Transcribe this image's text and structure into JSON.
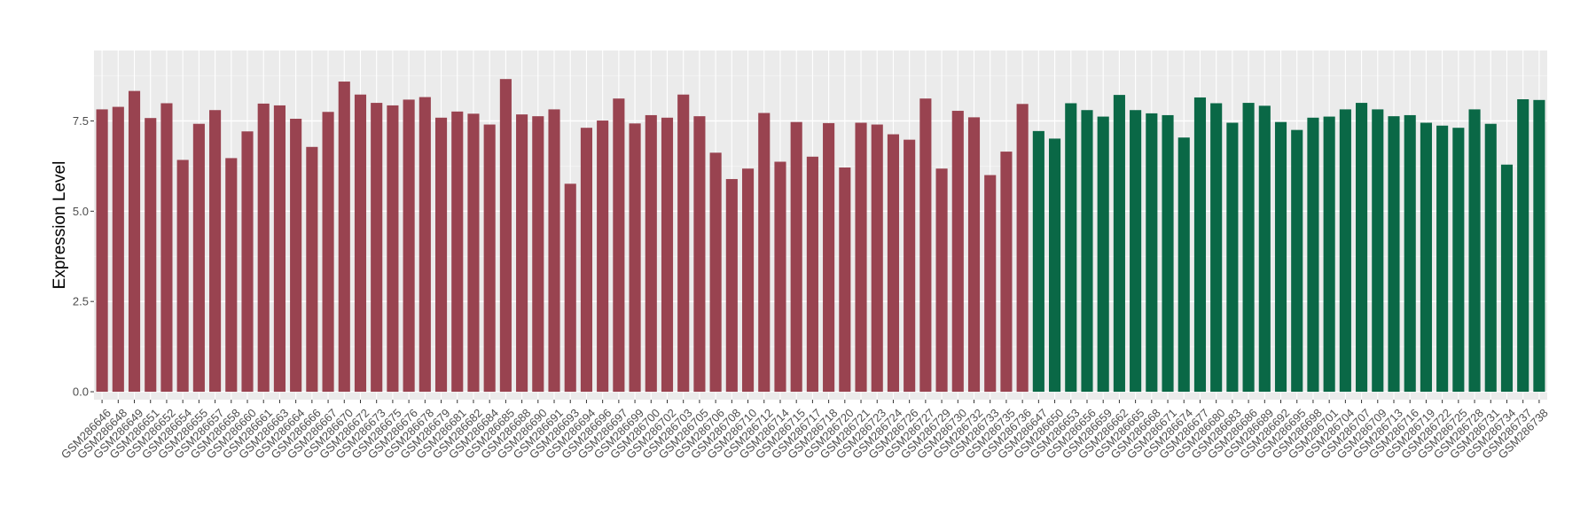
{
  "chart_data": {
    "type": "bar",
    "title": "",
    "xlabel": "",
    "ylabel": "Expression Level",
    "ylim": [
      -0.22,
      9.45
    ],
    "yticks": [
      0.0,
      2.5,
      5.0,
      7.5
    ],
    "ytick_labels": [
      "0.0",
      "2.5",
      "5.0",
      "7.5"
    ],
    "grid": true,
    "legend": "none",
    "colors": {
      "group_a": "#994350",
      "group_b": "#0a6846",
      "panel": "#ebebeb",
      "grid_major": "#ffffff",
      "grid_minor": "#f5f5f5"
    },
    "categories": [
      "GSM286646",
      "GSM286648",
      "GSM286649",
      "GSM286651",
      "GSM286652",
      "GSM286654",
      "GSM286655",
      "GSM286657",
      "GSM286658",
      "GSM286660",
      "GSM286661",
      "GSM286663",
      "GSM286664",
      "GSM286666",
      "GSM286667",
      "GSM286670",
      "GSM286672",
      "GSM286673",
      "GSM286675",
      "GSM286676",
      "GSM286678",
      "GSM286679",
      "GSM286681",
      "GSM286682",
      "GSM286684",
      "GSM286685",
      "GSM286688",
      "GSM286690",
      "GSM286691",
      "GSM286693",
      "GSM286694",
      "GSM286696",
      "GSM286697",
      "GSM286699",
      "GSM286700",
      "GSM286702",
      "GSM286703",
      "GSM286705",
      "GSM286706",
      "GSM286708",
      "GSM286710",
      "GSM286712",
      "GSM286714",
      "GSM286715",
      "GSM286717",
      "GSM286718",
      "GSM286720",
      "GSM286721",
      "GSM286723",
      "GSM286724",
      "GSM286726",
      "GSM286727",
      "GSM286729",
      "GSM286730",
      "GSM286732",
      "GSM286733",
      "GSM286735",
      "GSM286736",
      "GSM286647",
      "GSM286650",
      "GSM286653",
      "GSM286656",
      "GSM286659",
      "GSM286662",
      "GSM286665",
      "GSM286668",
      "GSM286671",
      "GSM286674",
      "GSM286677",
      "GSM286680",
      "GSM286683",
      "GSM286686",
      "GSM286689",
      "GSM286692",
      "GSM286695",
      "GSM286698",
      "GSM286701",
      "GSM286704",
      "GSM286707",
      "GSM286709",
      "GSM286713",
      "GSM286716",
      "GSM286719",
      "GSM286722",
      "GSM286725",
      "GSM286728",
      "GSM286731",
      "GSM286734",
      "GSM286737",
      "GSM286738"
    ],
    "values": [
      7.82,
      7.89,
      8.33,
      7.58,
      7.99,
      6.42,
      7.42,
      7.8,
      6.47,
      7.21,
      7.98,
      7.93,
      7.56,
      6.78,
      7.75,
      8.59,
      8.23,
      8.0,
      7.93,
      8.09,
      8.16,
      7.59,
      7.76,
      7.7,
      7.4,
      8.66,
      7.68,
      7.63,
      7.82,
      5.76,
      7.31,
      7.51,
      8.12,
      7.43,
      7.66,
      7.59,
      8.23,
      7.63,
      6.62,
      5.89,
      6.18,
      7.72,
      6.37,
      7.47,
      6.51,
      7.44,
      6.21,
      7.45,
      7.4,
      7.13,
      6.98,
      8.12,
      6.18,
      7.78,
      7.6,
      6.0,
      6.65,
      7.97,
      7.22,
      7.01,
      7.99,
      7.8,
      7.62,
      8.22,
      7.8,
      7.71,
      7.66,
      7.04,
      8.15,
      7.99,
      7.45,
      8.0,
      7.92,
      7.47,
      7.25,
      7.59,
      7.62,
      7.82,
      8.0,
      7.82,
      7.63,
      7.66,
      7.45,
      7.37,
      7.31,
      7.82,
      7.42,
      6.29,
      8.1,
      8.08
    ],
    "groups": [
      "a",
      "a",
      "a",
      "a",
      "a",
      "a",
      "a",
      "a",
      "a",
      "a",
      "a",
      "a",
      "a",
      "a",
      "a",
      "a",
      "a",
      "a",
      "a",
      "a",
      "a",
      "a",
      "a",
      "a",
      "a",
      "a",
      "a",
      "a",
      "a",
      "a",
      "a",
      "a",
      "a",
      "a",
      "a",
      "a",
      "a",
      "a",
      "a",
      "a",
      "a",
      "a",
      "a",
      "a",
      "a",
      "a",
      "a",
      "a",
      "a",
      "a",
      "a",
      "a",
      "a",
      "a",
      "a",
      "a",
      "a",
      "a",
      "b",
      "b",
      "b",
      "b",
      "b",
      "b",
      "b",
      "b",
      "b",
      "b",
      "b",
      "b",
      "b",
      "b",
      "b",
      "b",
      "b",
      "b",
      "b",
      "b",
      "b",
      "b",
      "b",
      "b",
      "b",
      "b",
      "b",
      "b",
      "b",
      "b",
      "b",
      "b"
    ]
  }
}
